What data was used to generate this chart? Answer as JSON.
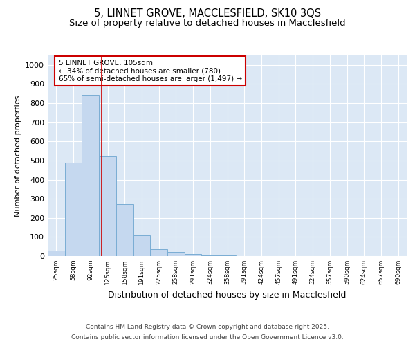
{
  "title1": "5, LINNET GROVE, MACCLESFIELD, SK10 3QS",
  "title2": "Size of property relative to detached houses in Macclesfield",
  "xlabel": "Distribution of detached houses by size in Macclesfield",
  "ylabel": "Number of detached properties",
  "bar_labels": [
    "25sqm",
    "58sqm",
    "92sqm",
    "125sqm",
    "158sqm",
    "191sqm",
    "225sqm",
    "258sqm",
    "291sqm",
    "324sqm",
    "358sqm",
    "391sqm",
    "424sqm",
    "457sqm",
    "491sqm",
    "524sqm",
    "557sqm",
    "590sqm",
    "624sqm",
    "657sqm",
    "690sqm"
  ],
  "bar_values": [
    28,
    490,
    840,
    520,
    270,
    108,
    38,
    22,
    12,
    5,
    5,
    0,
    0,
    0,
    0,
    0,
    0,
    0,
    0,
    0,
    0
  ],
  "bar_color": "#c5d8ef",
  "bar_edge_color": "#7aadd4",
  "ylim": [
    0,
    1050
  ],
  "yticks": [
    0,
    100,
    200,
    300,
    400,
    500,
    600,
    700,
    800,
    900,
    1000
  ],
  "red_line_x": 2.67,
  "annotation_text": "5 LINNET GROVE: 105sqm\n← 34% of detached houses are smaller (780)\n65% of semi-detached houses are larger (1,497) →",
  "annotation_box_color": "#ffffff",
  "annotation_border_color": "#cc0000",
  "footer_line1": "Contains HM Land Registry data © Crown copyright and database right 2025.",
  "footer_line2": "Contains public sector information licensed under the Open Government Licence v3.0.",
  "fig_bg_color": "#ffffff",
  "plot_bg_color": "#dce8f5",
  "grid_color": "#ffffff",
  "title_fontsize": 10.5,
  "subtitle_fontsize": 9.5,
  "ylabel_fontsize": 8,
  "xlabel_fontsize": 9
}
